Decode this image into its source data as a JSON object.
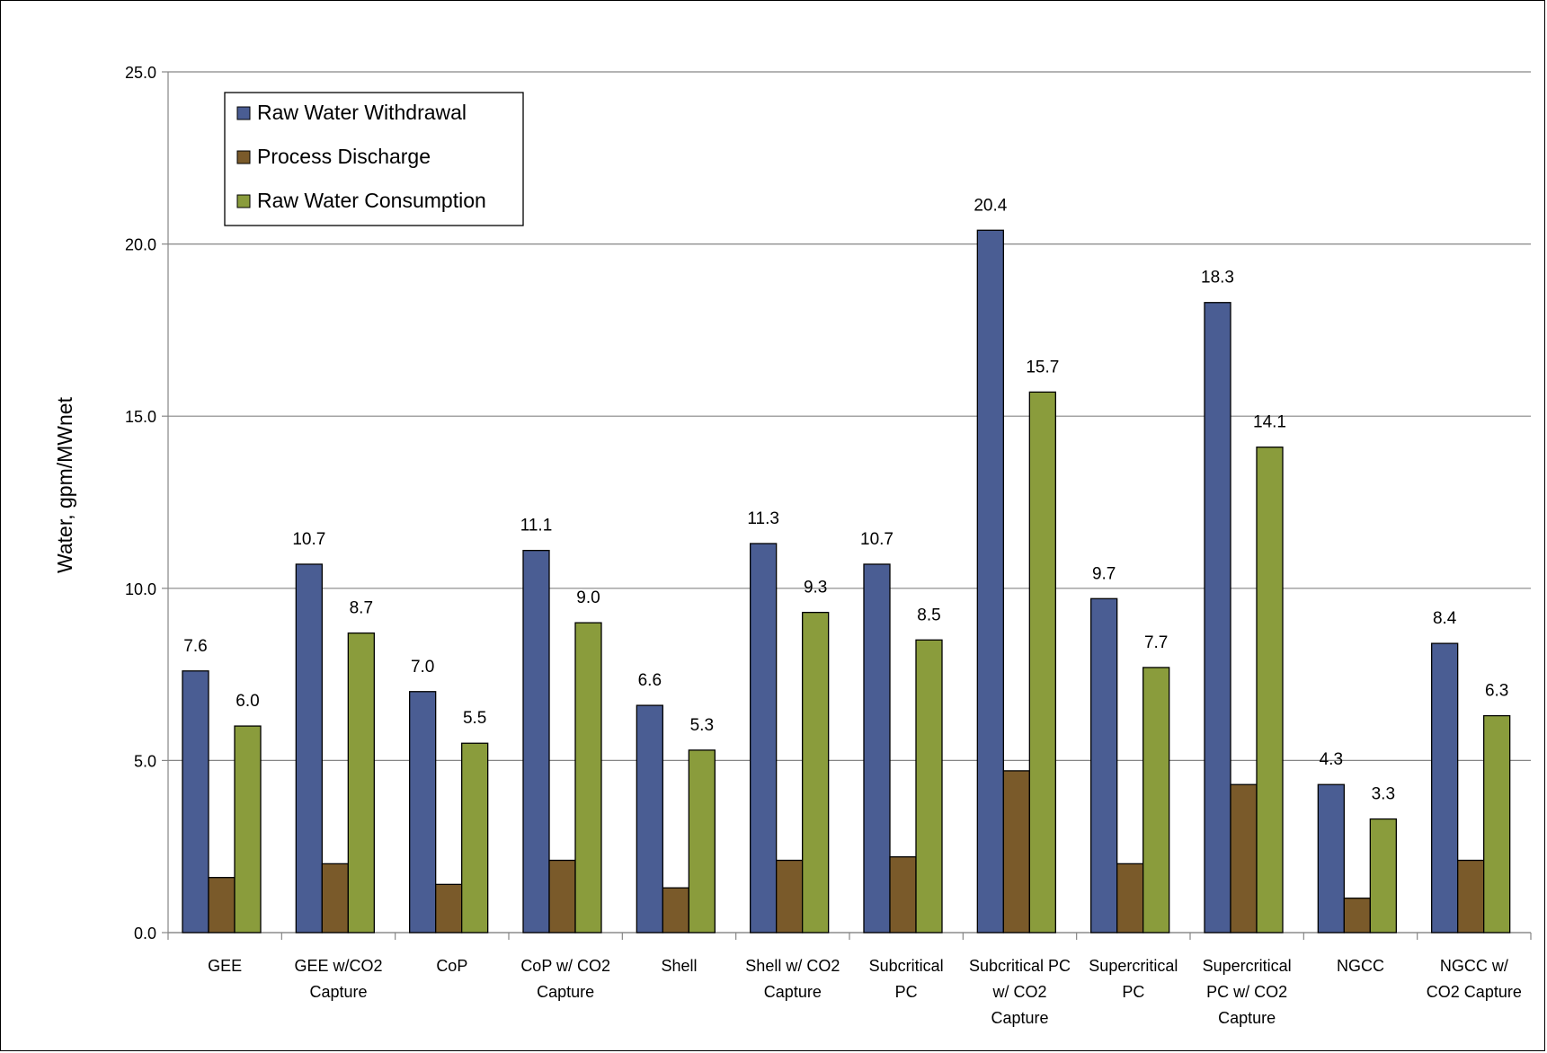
{
  "chart_data": {
    "type": "bar",
    "ylabel": "Water, gpm/MWnet",
    "ylim": [
      0,
      25
    ],
    "yticks": [
      "0.0",
      "5.0",
      "10.0",
      "15.0",
      "20.0",
      "25.0"
    ],
    "grid": true,
    "legend_position": "top-left",
    "categories": [
      [
        "GEE"
      ],
      [
        "GEE w/CO2",
        "Capture"
      ],
      [
        "CoP"
      ],
      [
        "CoP w/ CO2",
        "Capture"
      ],
      [
        "Shell"
      ],
      [
        "Shell w/ CO2",
        "Capture"
      ],
      [
        "Subcritical",
        "PC"
      ],
      [
        "Subcritical PC",
        "w/ CO2",
        "Capture"
      ],
      [
        "Supercritical",
        "PC"
      ],
      [
        "Supercritical",
        "PC w/ CO2",
        "Capture"
      ],
      [
        "NGCC"
      ],
      [
        "NGCC w/",
        "CO2 Capture"
      ]
    ],
    "series": [
      {
        "name": "Raw Water Withdrawal",
        "color": "#4A5D93",
        "values": [
          7.6,
          10.7,
          7.0,
          11.1,
          6.6,
          11.3,
          10.7,
          20.4,
          9.7,
          18.3,
          4.3,
          8.4
        ],
        "labels": [
          "7.6",
          "10.7",
          "7.0",
          "11.1",
          "6.6",
          "11.3",
          "10.7",
          "20.4",
          "9.7",
          "18.3",
          "4.3",
          "8.4"
        ]
      },
      {
        "name": "Process Discharge",
        "color": "#7A5A2A",
        "values": [
          1.6,
          2.0,
          1.4,
          2.1,
          1.3,
          2.1,
          2.2,
          4.7,
          2.0,
          4.3,
          1.0,
          2.1
        ],
        "labels": null
      },
      {
        "name": "Raw Water Consumption",
        "color": "#8A9C3C",
        "values": [
          6.0,
          8.7,
          5.5,
          9.0,
          5.3,
          9.3,
          8.5,
          15.7,
          7.7,
          14.1,
          3.3,
          6.3
        ],
        "labels": [
          "6.0",
          "8.7",
          "5.5",
          "9.0",
          "5.3",
          "9.3",
          "8.5",
          "15.7",
          "7.7",
          "14.1",
          "3.3",
          "6.3"
        ]
      }
    ]
  }
}
